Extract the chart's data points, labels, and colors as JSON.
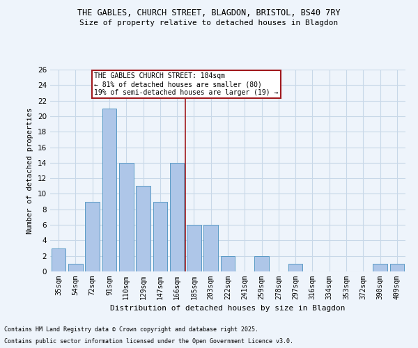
{
  "title1": "THE GABLES, CHURCH STREET, BLAGDON, BRISTOL, BS40 7RY",
  "title2": "Size of property relative to detached houses in Blagdon",
  "xlabel": "Distribution of detached houses by size in Blagdon",
  "ylabel": "Number of detached properties",
  "footnote1": "Contains HM Land Registry data © Crown copyright and database right 2025.",
  "footnote2": "Contains public sector information licensed under the Open Government Licence v3.0.",
  "categories": [
    "35sqm",
    "54sqm",
    "72sqm",
    "91sqm",
    "110sqm",
    "129sqm",
    "147sqm",
    "166sqm",
    "185sqm",
    "203sqm",
    "222sqm",
    "241sqm",
    "259sqm",
    "278sqm",
    "297sqm",
    "316sqm",
    "334sqm",
    "353sqm",
    "372sqm",
    "390sqm",
    "409sqm"
  ],
  "values": [
    3,
    1,
    9,
    21,
    14,
    11,
    9,
    14,
    6,
    6,
    2,
    0,
    2,
    0,
    1,
    0,
    0,
    0,
    0,
    1,
    1
  ],
  "bar_color": "#aec6e8",
  "bar_edge_color": "#5a9ac5",
  "grid_color": "#c8d8e8",
  "background_color": "#eef4fb",
  "vline_color": "#a0181c",
  "annotation_text": "THE GABLES CHURCH STREET: 184sqm\n← 81% of detached houses are smaller (80)\n19% of semi-detached houses are larger (19) →",
  "annotation_box_color": "#a0181c",
  "ylim": [
    0,
    26
  ],
  "yticks": [
    0,
    2,
    4,
    6,
    8,
    10,
    12,
    14,
    16,
    18,
    20,
    22,
    24,
    26
  ]
}
